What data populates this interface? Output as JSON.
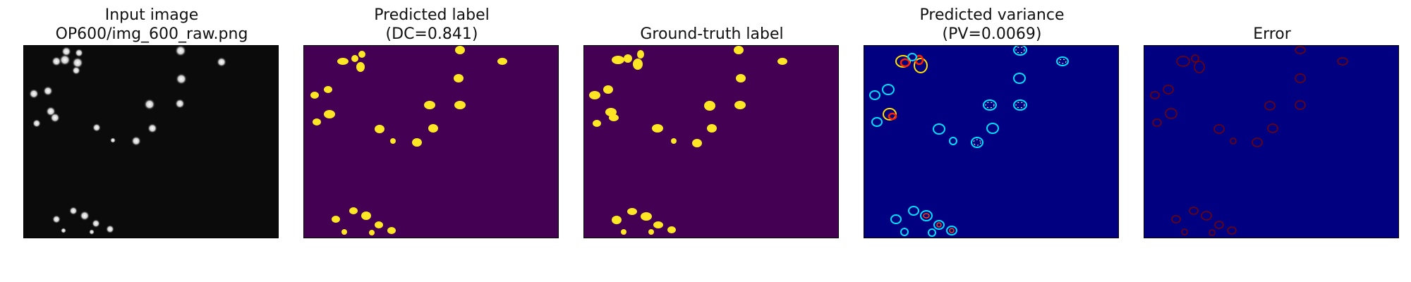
{
  "figure": {
    "panels": [
      {
        "title_line1": "Input image",
        "title_line2": "OP600/img_600_raw.png",
        "image": "grayscale fluorescence microscopy image of bright nuclei on a black background"
      },
      {
        "title_line1": "Predicted label",
        "title_line2": "(DC=0.841)",
        "image": "yellow segmented nuclei on a dark purple background"
      },
      {
        "title_line1": "",
        "title_line2": "Ground-truth label",
        "image": "yellow ground-truth nuclei masks on a dark purple background"
      },
      {
        "title_line1": "Predicted variance",
        "title_line2": "(PV=0.0069)",
        "image": "jet colormap uncertainty rings around nuclei on a dark blue background"
      },
      {
        "title_line1": "",
        "title_line2": "Error",
        "image": "faint dark red error outlines around nuclei on a dark blue background"
      }
    ],
    "colors": {
      "raw_bg": "#0b0b0b",
      "label_bg": "#440154",
      "label_fg": "#fde725",
      "variance_bg": "#000080",
      "error_outline": "#7a0000"
    }
  }
}
